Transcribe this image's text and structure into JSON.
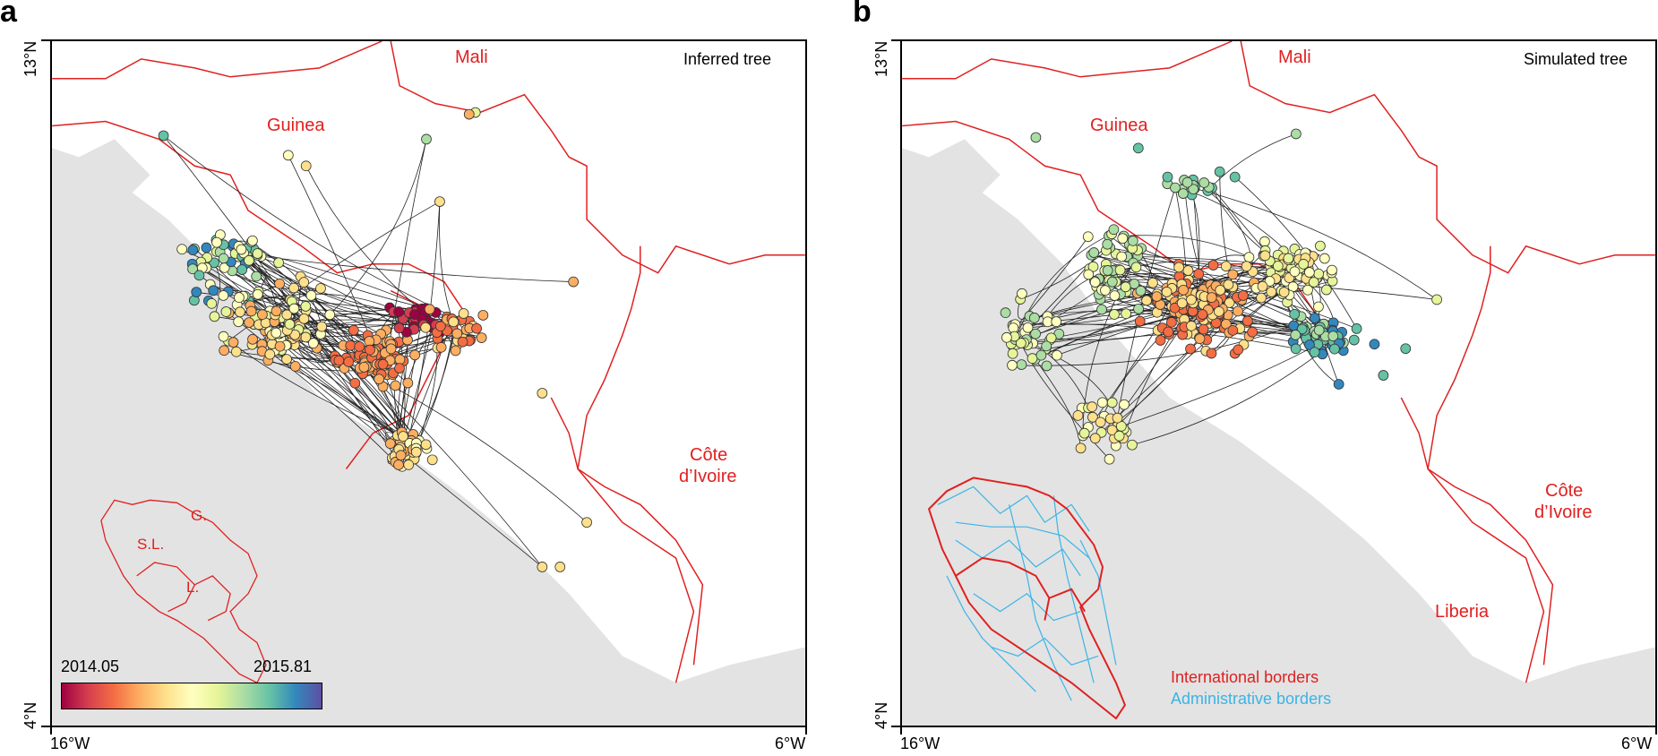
{
  "panels": {
    "a": {
      "letter": "a",
      "tree_label": "Inferred tree",
      "countries": {
        "mali": "Mali",
        "guinea": "Guinea",
        "cote1": "Côte",
        "cote2": "d’Ivoire"
      },
      "inset_labels": {
        "g": "G.",
        "sl": "S.L.",
        "l": "L."
      },
      "colorbar": {
        "min_label": "2014.05",
        "max_label": "2015.81"
      }
    },
    "b": {
      "letter": "b",
      "tree_label": "Simulated tree",
      "countries": {
        "mali": "Mali",
        "guinea": "Guinea",
        "cote1": "Côte",
        "cote2": "d’Ivoire",
        "liberia": "Liberia"
      },
      "legend": {
        "international": "International borders",
        "administrative": "Administrative borders"
      }
    }
  },
  "axes": {
    "lat_top": "13°N",
    "lat_bottom": "4°N",
    "lon_left": "16°W",
    "lon_right": "6°W"
  },
  "colors": {
    "border_red": "#e02020",
    "admin_blue": "#3ab4e6",
    "sea_gray": "#e3e3e3",
    "branch": "#222222"
  },
  "colorscale": [
    "#9e0142",
    "#d53e4f",
    "#f46d43",
    "#fdae61",
    "#fee08b",
    "#ffffbf",
    "#e6f598",
    "#abdda4",
    "#66c2a5",
    "#3288bd",
    "#5e4fa2"
  ]
}
